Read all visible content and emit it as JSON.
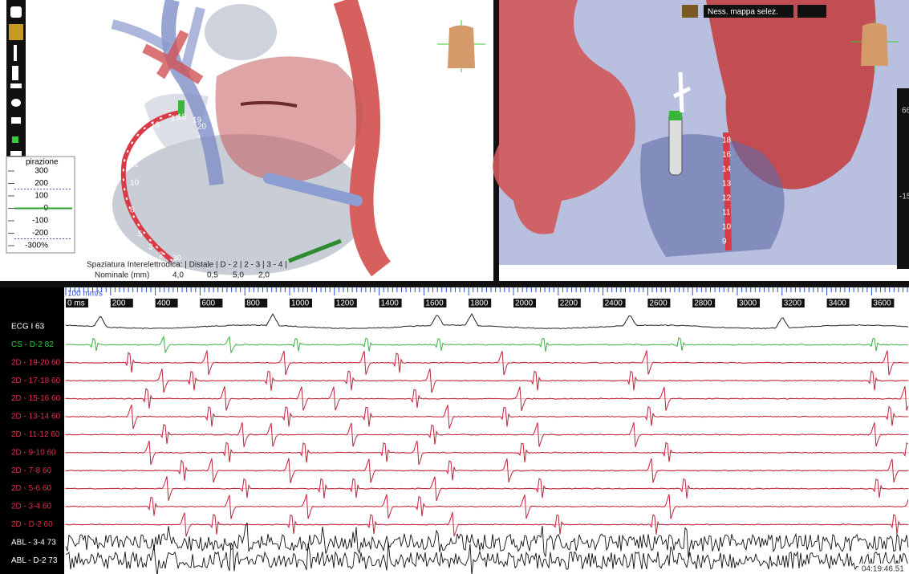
{
  "respiration": {
    "title": "pirazione",
    "scale": [
      "300",
      "200",
      "100",
      "0",
      "-100",
      "-200",
      "-300%"
    ]
  },
  "spacing": {
    "header": "Spaziatura Interelettrodica: | Distale | D - 2 | 2 - 3 | 3 - 4 |",
    "row_label": "Nominale (mm)",
    "values": [
      "4,0",
      "0,5",
      "5,0",
      "2,0"
    ]
  },
  "left_view": {
    "electrodes": [
      "17",
      "18",
      "19",
      "20",
      "16",
      "15",
      "14",
      "11",
      "10",
      "8",
      "5",
      "3",
      "2",
      "30"
    ]
  },
  "right_view": {
    "map_select": "Ness. mappa selez.",
    "slider_top": "66",
    "slider_bottom": "-15",
    "electrodes": [
      "18",
      "16",
      "14",
      "13",
      "12",
      "11",
      "10",
      "9"
    ]
  },
  "traces": {
    "speed": "100 mm/s",
    "time_labels": [
      "0 ms",
      "200",
      "400",
      "600",
      "800",
      "1000",
      "1200",
      "1400",
      "1600",
      "1800",
      "2000",
      "2200",
      "2400",
      "2600",
      "2800",
      "3000",
      "3200",
      "3400",
      "3600"
    ],
    "channels": [
      "ECG I 63",
      "CS - D-2 82",
      "2D - 19-20 60",
      "2D - 17-18 60",
      "2D - 15-16 60",
      "2D - 13-14 60",
      "2D - 11-12 60",
      "2D - 9-10 60",
      "2D - 7-8 60",
      "2D - 5-6 60",
      "2D - 3-4 60",
      "2D - D-2 60",
      "ABL - 3-4 73",
      "ABL - D-2 73"
    ],
    "timestamp": "04:19:46.51"
  }
}
